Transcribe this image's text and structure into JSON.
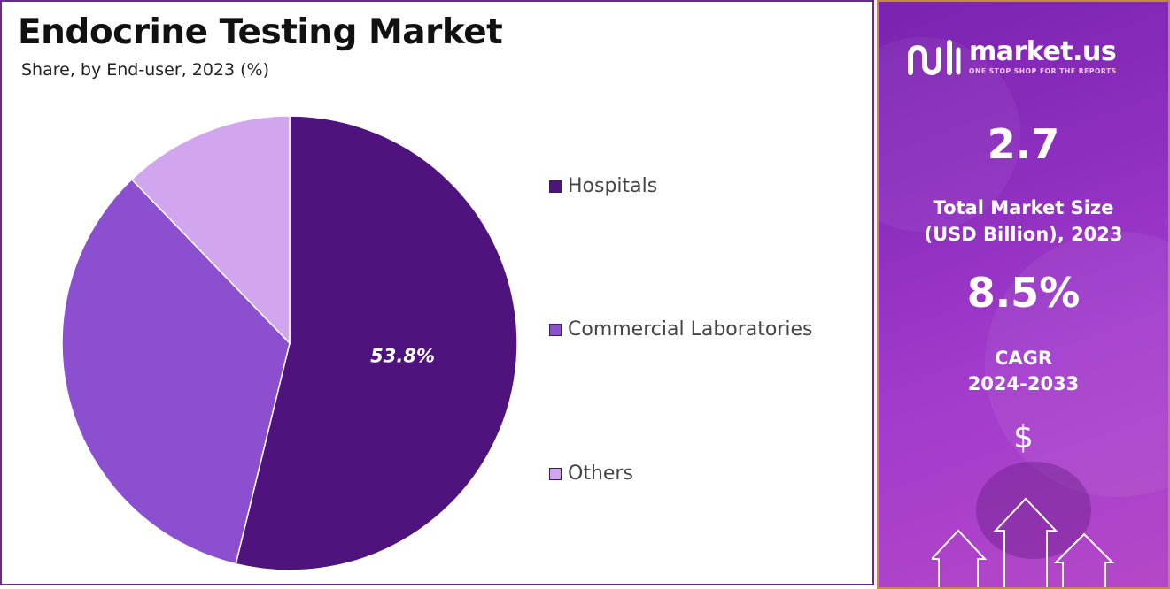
{
  "title": "Endocrine Testing Market",
  "subtitle": "Share, by End-user, 2023 (%)",
  "chart_data": {
    "type": "pie",
    "title": "Endocrine Testing Market",
    "subtitle": "Share, by End-user, 2023 (%)",
    "legend_position": "right",
    "slices": [
      {
        "label": "Hospitals",
        "value": 53.8,
        "color": "#4e137d",
        "data_label": "53.8%"
      },
      {
        "label": "Commercial Laboratories",
        "value": 34.0,
        "color": "#8c4fd0",
        "data_label": ""
      },
      {
        "label": "Others",
        "value": 12.2,
        "color": "#d2a6ee",
        "data_label": ""
      }
    ]
  },
  "sidebar": {
    "brand_name": "market.us",
    "brand_tagline": "ONE STOP SHOP FOR THE REPORTS",
    "market_size_value": "2.7",
    "market_size_label_line1": "Total Market Size",
    "market_size_label_line2": "(USD Billion), 2023",
    "cagr_value": "8.5%",
    "cagr_label_line1": "CAGR",
    "cagr_label_line2": "2024-2033",
    "currency_symbol": "$"
  }
}
